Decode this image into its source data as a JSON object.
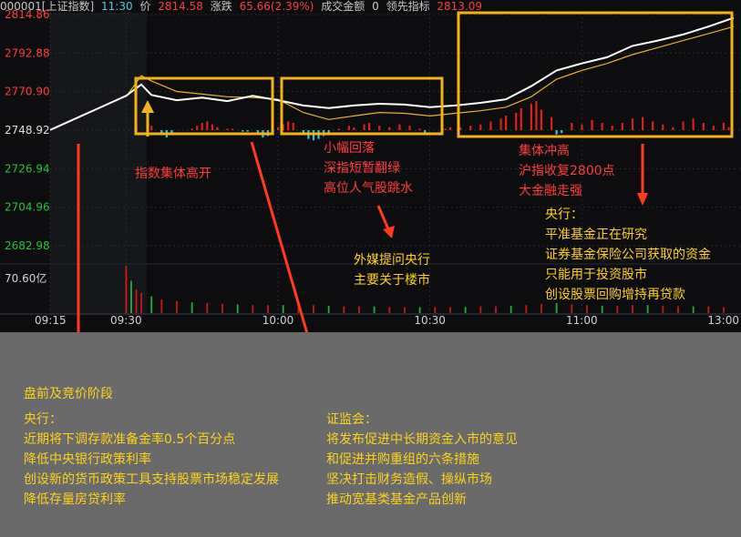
{
  "header": {
    "code_name": "000001[上证指数]",
    "time": "11:30",
    "price_label": "价",
    "price": "2814.58",
    "change_label": "涨跌",
    "change": "65.66(2.39%)",
    "turnover_label": "成交金额",
    "turnover": "0",
    "lead_label": "领先指标",
    "lead": "2813.09"
  },
  "y_labels": [
    "2814.86",
    "2792.88",
    "2770.90",
    "2748.92",
    "2726.94",
    "2704.96",
    "2682.98"
  ],
  "volume_label": "70.60亿",
  "x_labels": [
    "09:15",
    "09:30",
    "10:00",
    "10:30",
    "11:00",
    "13:00"
  ],
  "annotations": {
    "open_high": "指数集体高开",
    "pullback": [
      "小幅回落",
      "深指短暂翻绿",
      "高位人气股跳水"
    ],
    "surge": [
      "集体冲高",
      "沪指收复2800点",
      "大金融走强"
    ],
    "foreign_media": [
      "外媒提问央行",
      "主要关于楼市"
    ],
    "pboc_right": [
      "央行：",
      "平准基金正在研究",
      "证券基金保险公司获取的资金",
      "只能用于投资股市",
      "创设股票回购增持再贷款"
    ]
  },
  "bottom": {
    "stage_title": "盘前及竞价阶段",
    "pboc_title": "央行：",
    "pboc_items": [
      "近期将下调存款准备金率0.5个百分点",
      "降低中央银行政策利率",
      "创设新的货币政策工具支持股票市场稳定发展",
      "降低存量房贷利率"
    ],
    "csrc_title": "证监会：",
    "csrc_items": [
      "将发布促进中长期资金入市的意见",
      "和促进并购重组的六条措施",
      "坚决打击财务造假、操纵市场",
      "推动宽基类基金产品创新"
    ]
  },
  "colors": {
    "up": "#e0201f",
    "down": "#38c4d6",
    "highlight_box": "#f5b21a",
    "arrow": "#ff3b1f",
    "price_line": "#ffffff",
    "avg_line": "#e8b31c"
  },
  "chart_data": {
    "type": "line",
    "series": [
      {
        "x": [
          "09:15",
          "09:30",
          "09:33",
          "09:35",
          "09:40",
          "09:45",
          "09:50",
          "09:55",
          "10:00",
          "10:05",
          "10:10",
          "10:15",
          "10:20",
          "10:25",
          "10:30",
          "10:35",
          "10:40",
          "10:45",
          "10:50",
          "10:55",
          "11:00",
          "11:05",
          "11:10",
          "11:15",
          "11:20",
          "11:25",
          "11:30"
        ],
        "values": [
          2749.0,
          2768.5,
          2775.0,
          2769.0,
          2766.0,
          2767.5,
          2765.5,
          2768.5,
          2766.0,
          2763.0,
          2761.5,
          2763.0,
          2764.0,
          2763.5,
          2762.0,
          2763.0,
          2764.5,
          2766.5,
          2774.0,
          2783.0,
          2787.0,
          2790.5,
          2797.0,
          2800.0,
          2803.5,
          2808.0,
          2813.0
        ]
      },
      {
        "x": [
          "09:30",
          "09:33",
          "09:35",
          "09:40",
          "09:45",
          "09:50",
          "09:55",
          "10:00",
          "10:05",
          "10:10",
          "10:15",
          "10:20",
          "10:25",
          "10:30",
          "10:35",
          "10:40",
          "10:45",
          "10:50",
          "10:55",
          "11:00",
          "11:05",
          "11:10",
          "11:15",
          "11:20",
          "11:25",
          "11:30"
        ],
        "values": [
          2768.0,
          2780.0,
          2777.0,
          2771.0,
          2769.5,
          2768.0,
          2767.5,
          2766.5,
          2759.0,
          2755.0,
          2757.0,
          2759.0,
          2758.5,
          2757.0,
          2758.5,
          2760.0,
          2762.0,
          2768.0,
          2778.0,
          2783.0,
          2787.0,
          2792.0,
          2796.0,
          2800.0,
          2804.0,
          2808.0
        ]
      }
    ],
    "indicator_bars": [
      {
        "x": "09:32",
        "value": 5
      },
      {
        "x": "09:35",
        "value": 3
      },
      {
        "x": "09:37",
        "value": -3
      },
      {
        "x": "09:38",
        "value": -5
      },
      {
        "x": "09:39",
        "value": -3
      },
      {
        "x": "09:43",
        "value": 1
      },
      {
        "x": "09:44",
        "value": 3
      },
      {
        "x": "09:45",
        "value": 5
      },
      {
        "x": "09:46",
        "value": 6
      },
      {
        "x": "09:47",
        "value": 4
      },
      {
        "x": "09:48",
        "value": 2
      },
      {
        "x": "09:50",
        "value": 1
      },
      {
        "x": "09:51",
        "value": 1
      },
      {
        "x": "09:53",
        "value": -1
      },
      {
        "x": "09:54",
        "value": -1
      },
      {
        "x": "09:56",
        "value": -2
      },
      {
        "x": "09:57",
        "value": -5
      },
      {
        "x": "09:58",
        "value": -4
      },
      {
        "x": "09:59",
        "value": -3
      },
      {
        "x": "10:00",
        "value": 2
      },
      {
        "x": "10:01",
        "value": 4
      },
      {
        "x": "10:02",
        "value": 6
      },
      {
        "x": "10:03",
        "value": 5
      },
      {
        "x": "10:05",
        "value": -2
      },
      {
        "x": "10:06",
        "value": -6
      },
      {
        "x": "10:07",
        "value": -7
      },
      {
        "x": "10:08",
        "value": -6
      },
      {
        "x": "10:09",
        "value": -4
      },
      {
        "x": "10:10",
        "value": -2
      },
      {
        "x": "10:12",
        "value": 1
      },
      {
        "x": "10:14",
        "value": 3
      },
      {
        "x": "10:15",
        "value": 2
      },
      {
        "x": "10:17",
        "value": 4
      },
      {
        "x": "10:18",
        "value": 5
      },
      {
        "x": "10:20",
        "value": 3
      },
      {
        "x": "10:22",
        "value": 2
      },
      {
        "x": "10:24",
        "value": 4
      },
      {
        "x": "10:26",
        "value": 3
      },
      {
        "x": "10:28",
        "value": 1
      },
      {
        "x": "10:29",
        "value": -2
      },
      {
        "x": "10:33",
        "value": 1
      },
      {
        "x": "10:34",
        "value": 2
      },
      {
        "x": "10:36",
        "value": 2
      },
      {
        "x": "10:38",
        "value": 3
      },
      {
        "x": "10:40",
        "value": 4
      },
      {
        "x": "10:42",
        "value": 6
      },
      {
        "x": "10:44",
        "value": 8
      },
      {
        "x": "10:45",
        "value": 10
      },
      {
        "x": "10:47",
        "value": 12
      },
      {
        "x": "10:48",
        "value": 15
      },
      {
        "x": "10:50",
        "value": 18
      },
      {
        "x": "10:51",
        "value": 20
      },
      {
        "x": "10:52",
        "value": 14
      },
      {
        "x": "10:54",
        "value": 9
      },
      {
        "x": "10:55",
        "value": -3
      },
      {
        "x": "10:56",
        "value": -2
      },
      {
        "x": "10:58",
        "value": 5
      },
      {
        "x": "11:00",
        "value": 4
      },
      {
        "x": "11:02",
        "value": 7
      },
      {
        "x": "11:04",
        "value": 5
      },
      {
        "x": "11:06",
        "value": 3
      },
      {
        "x": "11:08",
        "value": 5
      },
      {
        "x": "11:10",
        "value": 8
      },
      {
        "x": "11:12",
        "value": 9
      },
      {
        "x": "11:14",
        "value": 6
      },
      {
        "x": "11:16",
        "value": 4
      },
      {
        "x": "11:18",
        "value": 2
      },
      {
        "x": "11:20",
        "value": 6
      },
      {
        "x": "11:22",
        "value": 8
      },
      {
        "x": "11:24",
        "value": 5
      },
      {
        "x": "11:26",
        "value": 3
      },
      {
        "x": "11:28",
        "value": 5
      },
      {
        "x": "11:29",
        "value": 2
      }
    ],
    "volume_bars": [
      {
        "x": "09:30",
        "value": 70.6
      },
      {
        "x": "09:31",
        "value": 48
      },
      {
        "x": "09:32",
        "value": 35
      },
      {
        "x": "09:33",
        "value": 30
      },
      {
        "x": "09:35",
        "value": 25
      },
      {
        "x": "09:37",
        "value": 20
      },
      {
        "x": "09:40",
        "value": 18
      },
      {
        "x": "09:43",
        "value": 16
      },
      {
        "x": "09:46",
        "value": 15
      },
      {
        "x": "09:49",
        "value": 14
      },
      {
        "x": "09:52",
        "value": 13
      },
      {
        "x": "09:55",
        "value": 12
      },
      {
        "x": "09:58",
        "value": 12
      },
      {
        "x": "10:01",
        "value": 12
      },
      {
        "x": "10:04",
        "value": 13
      },
      {
        "x": "10:07",
        "value": 12
      },
      {
        "x": "10:10",
        "value": 11
      },
      {
        "x": "10:13",
        "value": 10
      },
      {
        "x": "10:16",
        "value": 10
      },
      {
        "x": "10:19",
        "value": 10
      },
      {
        "x": "10:22",
        "value": 9
      },
      {
        "x": "10:25",
        "value": 9
      },
      {
        "x": "10:28",
        "value": 9
      },
      {
        "x": "10:31",
        "value": 9
      },
      {
        "x": "10:34",
        "value": 9
      },
      {
        "x": "10:37",
        "value": 9
      },
      {
        "x": "10:40",
        "value": 10
      },
      {
        "x": "10:43",
        "value": 10
      },
      {
        "x": "10:46",
        "value": 11
      },
      {
        "x": "10:49",
        "value": 12
      },
      {
        "x": "10:52",
        "value": 14
      },
      {
        "x": "10:55",
        "value": 15
      },
      {
        "x": "10:58",
        "value": 13
      },
      {
        "x": "11:01",
        "value": 12
      },
      {
        "x": "11:04",
        "value": 11
      },
      {
        "x": "11:07",
        "value": 11
      },
      {
        "x": "11:10",
        "value": 12
      },
      {
        "x": "11:13",
        "value": 12
      },
      {
        "x": "11:16",
        "value": 11
      },
      {
        "x": "11:19",
        "value": 10
      },
      {
        "x": "11:22",
        "value": 10
      },
      {
        "x": "11:25",
        "value": 10
      },
      {
        "x": "11:28",
        "value": 9
      }
    ],
    "ylim": [
      2682.98,
      2814.86
    ],
    "xlim": [
      "09:15",
      "11:30"
    ],
    "grid": true
  }
}
